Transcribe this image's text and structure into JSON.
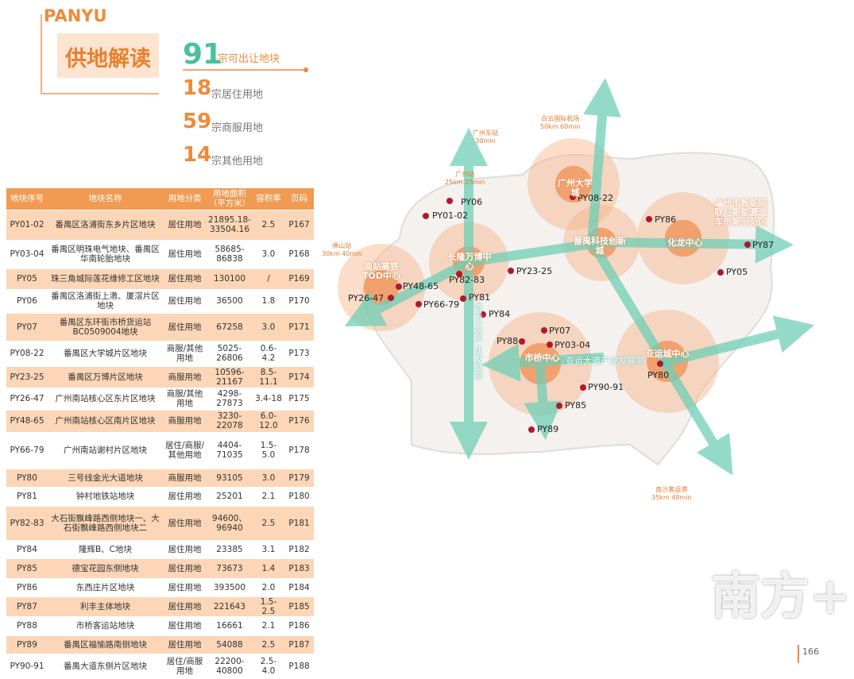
{
  "header": {
    "brand": "PANYU",
    "title": "供地解读"
  },
  "stats": [
    {
      "number": 91,
      "text": "宗可出让地块"
    },
    {
      "number": 18,
      "text": "宗居住用地"
    },
    {
      "number": 59,
      "text": "宗商服用地"
    },
    {
      "number": 14,
      "text": "宗其他用地"
    }
  ],
  "table": {
    "headers": [
      "地块序号",
      "地块名称",
      "用地分类",
      "用地面积（平方米）",
      "容积率",
      "页码"
    ],
    "rows": [
      [
        "PY01-02",
        "番禺区洛浦街东乡片区地块",
        "居住用地",
        "21895.18-33504.16",
        "2.5",
        "P167"
      ],
      [
        "PY03-04",
        "番禺区明珠电气地块、番禺区华南轮胎地块",
        "居住用地",
        "58685-86838",
        "3.0",
        "P168"
      ],
      [
        "PY05",
        "珠三角城际莲花维修工区地块",
        "居住用地",
        "130100",
        "/",
        "P169"
      ],
      [
        "PY06",
        "番禺区洛浦街上漖、厦滘片区地块",
        "居住用地",
        "36500",
        "1.8",
        "P170"
      ],
      [
        "PY07",
        "番禺区东环街市桥货运站BC0509004地块",
        "居住用地",
        "67258",
        "3.0",
        "P171"
      ],
      [
        "PY08-22",
        "番禺区大学城片区地块",
        "商服/其他用地",
        "5025-26806",
        "0.6-4.2",
        "P173"
      ],
      [
        "PY23-25",
        "番禺区万博片区地块",
        "商服用地",
        "10596-21167",
        "8.5-11.1",
        "P174"
      ],
      [
        "PY26-47",
        "广州南站核心区东片区地块",
        "商服/其他用地",
        "4298-27873",
        "3.4-18",
        "P175"
      ],
      [
        "PY48-65",
        "广州南站核心区南片区地块",
        "商服用地",
        "3230-22078",
        "6.0-12.0",
        "P176"
      ],
      [
        "PY66-79",
        "广州南站谢村片区地块",
        "居住/商服/其他用地",
        "4404-71035",
        "1.5-5.0",
        "P178"
      ],
      [
        "PY80",
        "三号线金光大道地块",
        "商服用地",
        "93105",
        "3.0",
        "P179"
      ],
      [
        "PY81",
        "钟村地铁站地块",
        "居住用地",
        "25201",
        "2.1",
        "P180"
      ],
      [
        "PY82-83",
        "大石街飘峰路西侧地块一、大石街飘峰路西侧地块二",
        "居住用地",
        "94600、96940",
        "2.5",
        "P181"
      ],
      [
        "PY84",
        "隆辉B、C地块",
        "居住用地",
        "23385",
        "3.1",
        "P182"
      ],
      [
        "PY85",
        "德宝花园东侧地块",
        "居住用地",
        "73673",
        "1.4",
        "P183"
      ],
      [
        "PY86",
        "东西庄片区地块",
        "居住用地",
        "393500",
        "2.0",
        "P184"
      ],
      [
        "PY87",
        "利丰主体地块",
        "居住用地",
        "221643",
        "1.5-2.5",
        "P185"
      ],
      [
        "PY88",
        "市桥客运站地块",
        "居住用地",
        "16661",
        "2.1",
        "P186"
      ],
      [
        "PY89",
        "番禺区福愉路南侧地块",
        "居住用地",
        "54088",
        "2.5",
        "P187"
      ],
      [
        "PY90-91",
        "番禺大道东侧片区地块",
        "居住/商服用地",
        "22200-40800",
        "2.5-4.0",
        "P188"
      ]
    ]
  },
  "map": {
    "points": [
      "PY06",
      "PY01-02",
      "PY08-22",
      "PY86",
      "PY87",
      "PY48-65",
      "PY82-83",
      "PY23-25",
      "PY05",
      "PY26-47",
      "PY66-79",
      "PY81",
      "PY84",
      "PY07",
      "PY88",
      "PY03-04",
      "PY90-91",
      "PY80",
      "PY85",
      "PY89"
    ],
    "centers": [
      "南站高铁TOD中心",
      "长隆万博中心",
      "广州大学城",
      "番禺科技创新城",
      "广州市智能网联与新能源汽车创新示范区",
      "化龙中心",
      "市桥中心",
      "亚运城中心"
    ],
    "corridors": [
      "亚运大道产业发展带",
      "番禺大道产业发展带"
    ],
    "transit": [
      {
        "name": "白云国际机场",
        "info": "50km 60min"
      },
      {
        "name": "广州东站",
        "info": "30min"
      },
      {
        "name": "广州站",
        "info": "25km 25min"
      },
      {
        "name": "佛山站",
        "info": "30km 40min"
      },
      {
        "name": "南沙客运港",
        "info": "35km 40min"
      }
    ]
  },
  "footer": {
    "page": "166",
    "watermark": "南方+"
  }
}
